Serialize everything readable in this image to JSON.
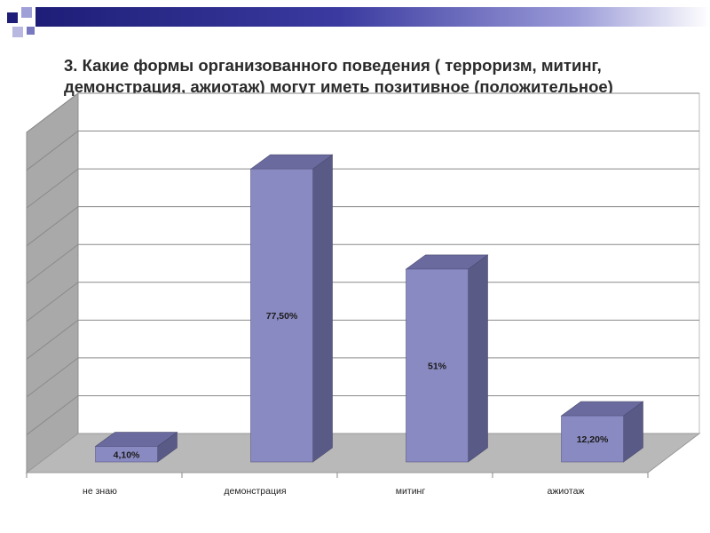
{
  "slide": {
    "title": "3. Какие формы организованного поведения ( терроризм, митинг, демонстрация, ажиотаж) могут иметь позитивное (положительное) значение?"
  },
  "colors": {
    "accent_dark": "#1e1e78",
    "bar_front": "#8a8ac2",
    "bar_side": "#5a5a86",
    "bar_top": "#6a6a9e"
  },
  "chart_data": {
    "type": "bar",
    "title": "",
    "xlabel": "",
    "ylabel": "",
    "categories": [
      "не знаю",
      "демонстрация",
      "митинг",
      "ажиотаж"
    ],
    "values": [
      4.1,
      77.5,
      51,
      12.2
    ],
    "value_labels": [
      "4,10%",
      "77,50%",
      "51%",
      "12,20%"
    ],
    "ylim": [
      0,
      90
    ],
    "grid": true,
    "legend": "none"
  }
}
